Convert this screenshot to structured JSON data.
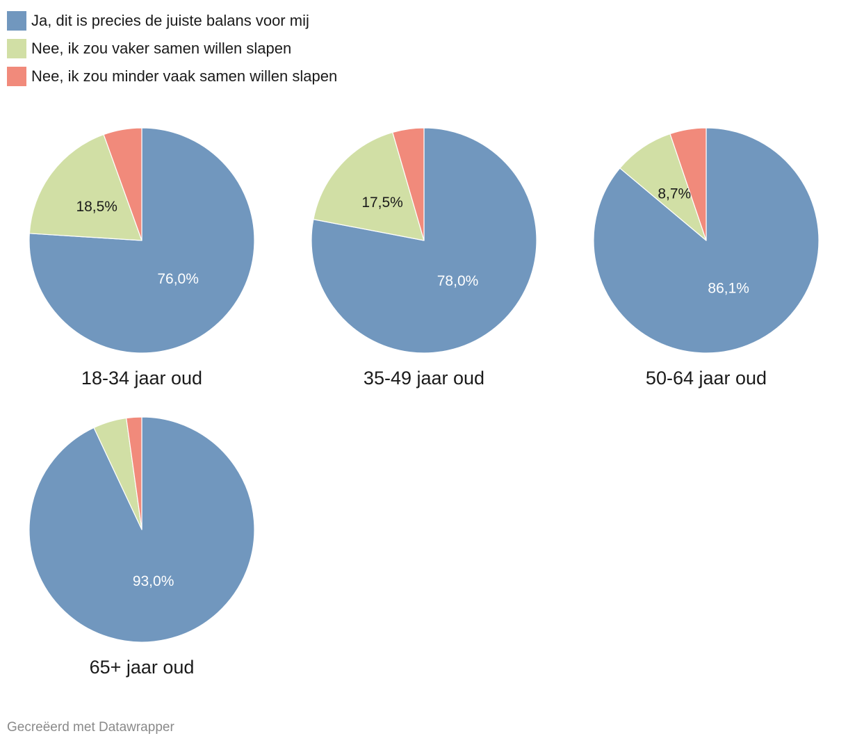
{
  "legend": [
    {
      "label": "Ja, dit is precies de juiste balans voor mij",
      "color": "#7197be"
    },
    {
      "label": "Nee, ik zou vaker samen willen slapen",
      "color": "#d1dfa5"
    },
    {
      "label": "Nee, ik zou minder vaak samen willen slapen",
      "color": "#f18a7b"
    }
  ],
  "chart_data": [
    {
      "type": "pie",
      "title": "18-34 jaar oud",
      "categories": [
        "Ja, dit is precies de juiste balans voor mij",
        "Nee, ik zou vaker samen willen slapen",
        "Nee, ik zou minder vaak samen willen slapen"
      ],
      "values": [
        76.0,
        18.5,
        5.5
      ],
      "labels": [
        "76,0%",
        "18,5%",
        ""
      ]
    },
    {
      "type": "pie",
      "title": "35-49 jaar oud",
      "categories": [
        "Ja, dit is precies de juiste balans voor mij",
        "Nee, ik zou vaker samen willen slapen",
        "Nee, ik zou minder vaak samen willen slapen"
      ],
      "values": [
        78.0,
        17.5,
        4.5
      ],
      "labels": [
        "78,0%",
        "17,5%",
        ""
      ]
    },
    {
      "type": "pie",
      "title": "50-64 jaar oud",
      "categories": [
        "Ja, dit is precies de juiste balans voor mij",
        "Nee, ik zou vaker samen willen slapen",
        "Nee, ik zou minder vaak samen willen slapen"
      ],
      "values": [
        86.1,
        8.7,
        5.2
      ],
      "labels": [
        "86,1%",
        "8,7%",
        ""
      ]
    },
    {
      "type": "pie",
      "title": "65+ jaar oud",
      "categories": [
        "Ja, dit is precies de juiste balans voor mij",
        "Nee, ik zou vaker samen willen slapen",
        "Nee, ik zou minder vaak samen willen slapen"
      ],
      "values": [
        93.0,
        4.8,
        2.2
      ],
      "labels": [
        "93,0%",
        "",
        ""
      ]
    }
  ],
  "footer": "Gecreëerd met Datawrapper"
}
